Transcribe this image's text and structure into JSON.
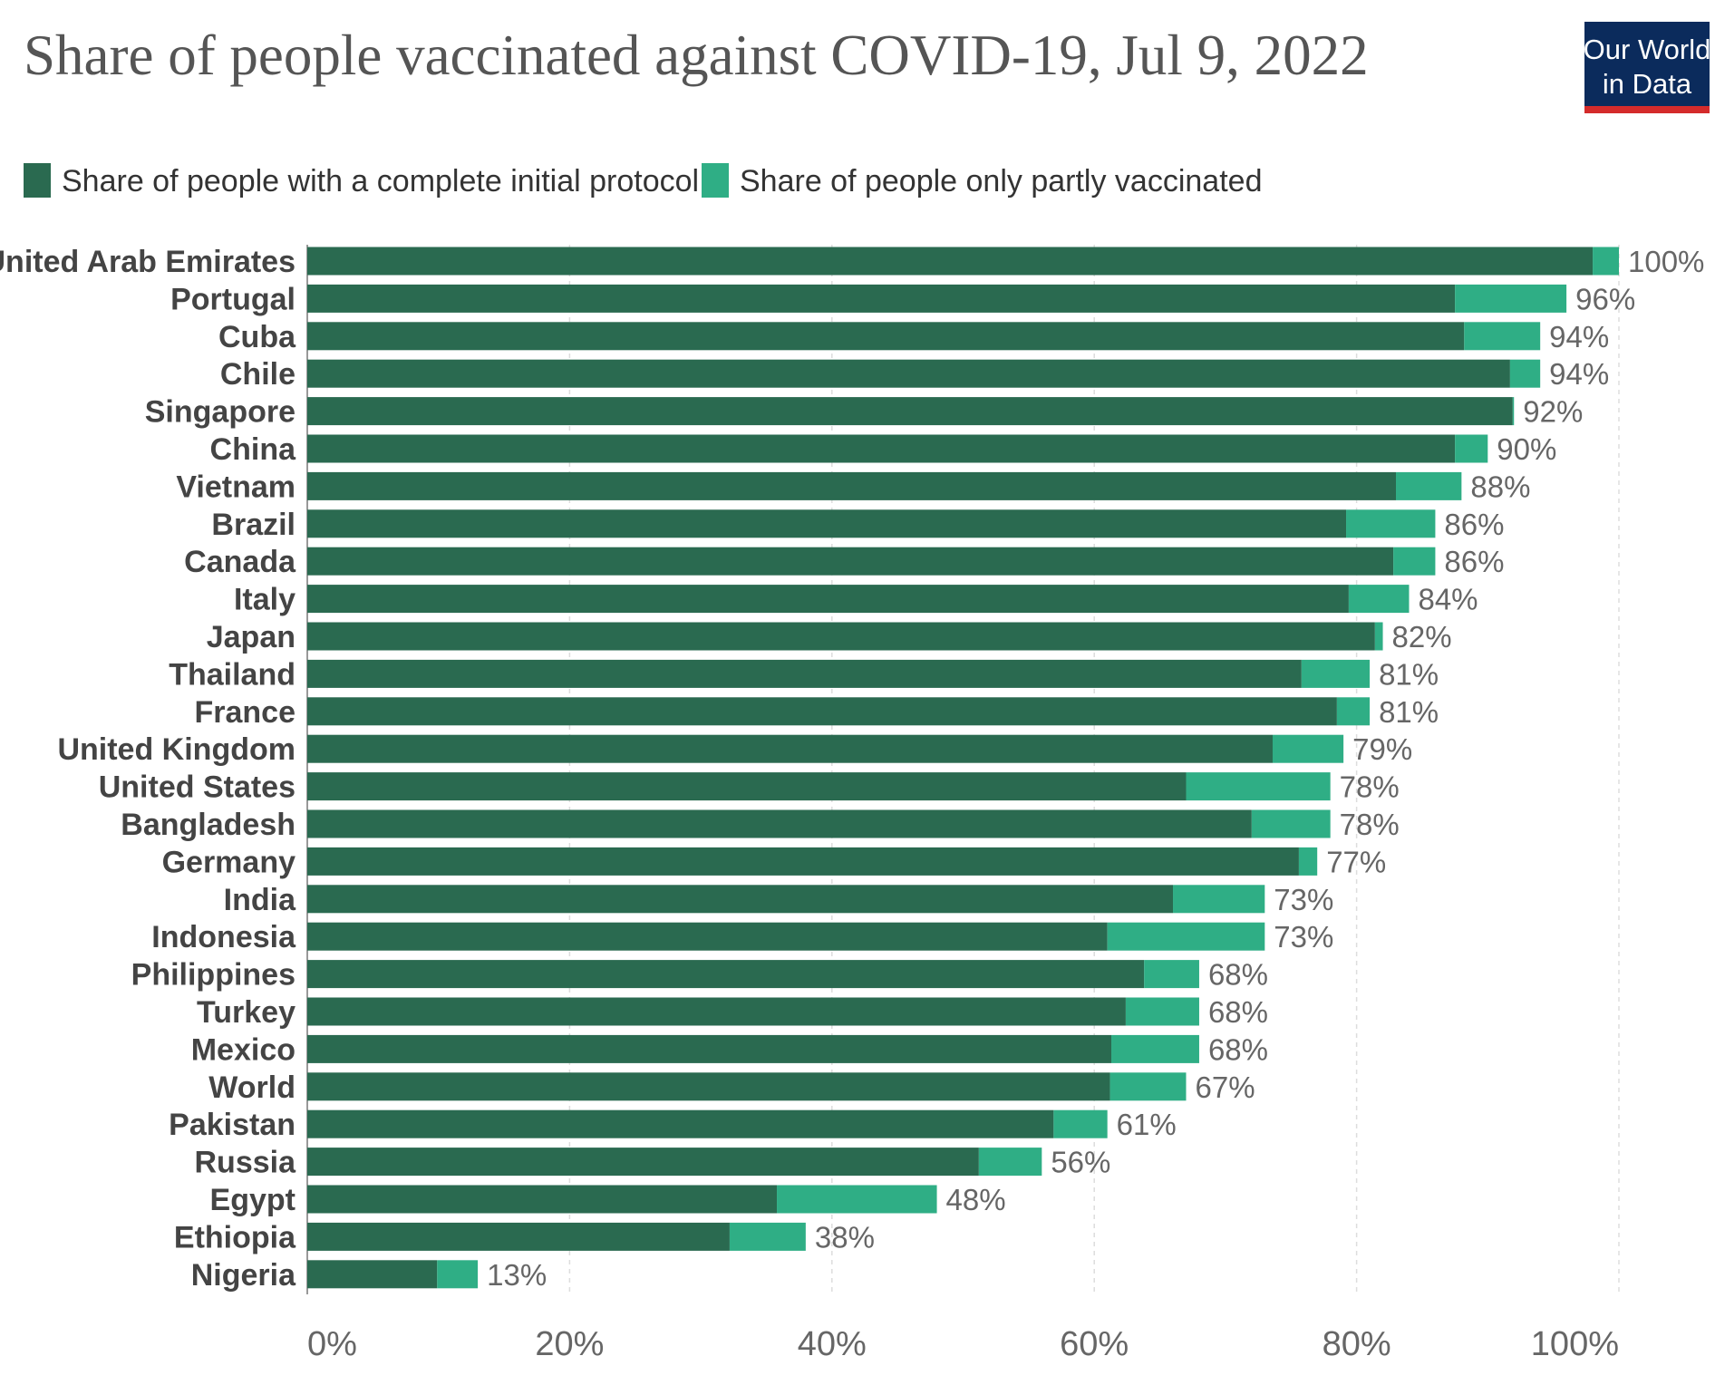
{
  "header": {
    "title": "Share of people vaccinated against COVID-19, Jul 9, 2022",
    "logo": {
      "line1": "Our World",
      "line2": "in Data",
      "bg_color": "#0b2b5c",
      "accent_color": "#d42b2b"
    }
  },
  "legend": [
    {
      "name": "Share of people with a complete initial protocol",
      "color": "#2a6a50"
    },
    {
      "name": "Share of people only partly vaccinated",
      "color": "#2fae85"
    }
  ],
  "chart_data": {
    "type": "bar",
    "orientation": "horizontal",
    "stacked": true,
    "title": "Share of people vaccinated against COVID-19, Jul 9, 2022",
    "categories": [
      "United Arab Emirates",
      "Portugal",
      "Cuba",
      "Chile",
      "Singapore",
      "China",
      "Vietnam",
      "Brazil",
      "Canada",
      "Italy",
      "Japan",
      "Thailand",
      "France",
      "United Kingdom",
      "United States",
      "Bangladesh",
      "Germany",
      "India",
      "Indonesia",
      "Philippines",
      "Turkey",
      "Mexico",
      "World",
      "Pakistan",
      "Russia",
      "Egypt",
      "Ethiopia",
      "Nigeria"
    ],
    "series": [
      {
        "name": "Share of people with a complete initial protocol",
        "color": "#2a6a50",
        "values": [
          98,
          87.5,
          88.2,
          91.7,
          91.9,
          87.5,
          83,
          79.2,
          82.8,
          79.4,
          81.4,
          75.8,
          78.5,
          73.6,
          67,
          72,
          75.6,
          66,
          61,
          63.8,
          62.4,
          61.3,
          61.2,
          56.9,
          51.2,
          35.8,
          32.2,
          9.9
        ]
      },
      {
        "name": "Share of people only partly vaccinated",
        "color": "#2fae85",
        "values": [
          2,
          8.5,
          5.8,
          2.3,
          0.1,
          2.5,
          5,
          6.8,
          3.2,
          4.6,
          0.6,
          5.2,
          2.5,
          5.4,
          11,
          6,
          1.4,
          7,
          12,
          4.2,
          5.6,
          6.7,
          5.8,
          4.1,
          4.8,
          12.2,
          5.8,
          3.1
        ]
      }
    ],
    "totals_labels": [
      "100%",
      "96%",
      "94%",
      "94%",
      "92%",
      "90%",
      "88%",
      "86%",
      "86%",
      "84%",
      "82%",
      "81%",
      "81%",
      "79%",
      "78%",
      "78%",
      "77%",
      "73%",
      "73%",
      "68%",
      "68%",
      "68%",
      "67%",
      "61%",
      "56%",
      "48%",
      "38%",
      "13%"
    ],
    "xlim": [
      0,
      100
    ],
    "xticks": [
      0,
      20,
      40,
      60,
      80,
      100
    ],
    "xtick_labels": [
      "0%",
      "20%",
      "40%",
      "60%",
      "80%",
      "100%"
    ],
    "grid": "vertical dashed",
    "legend_position": "top-left"
  }
}
